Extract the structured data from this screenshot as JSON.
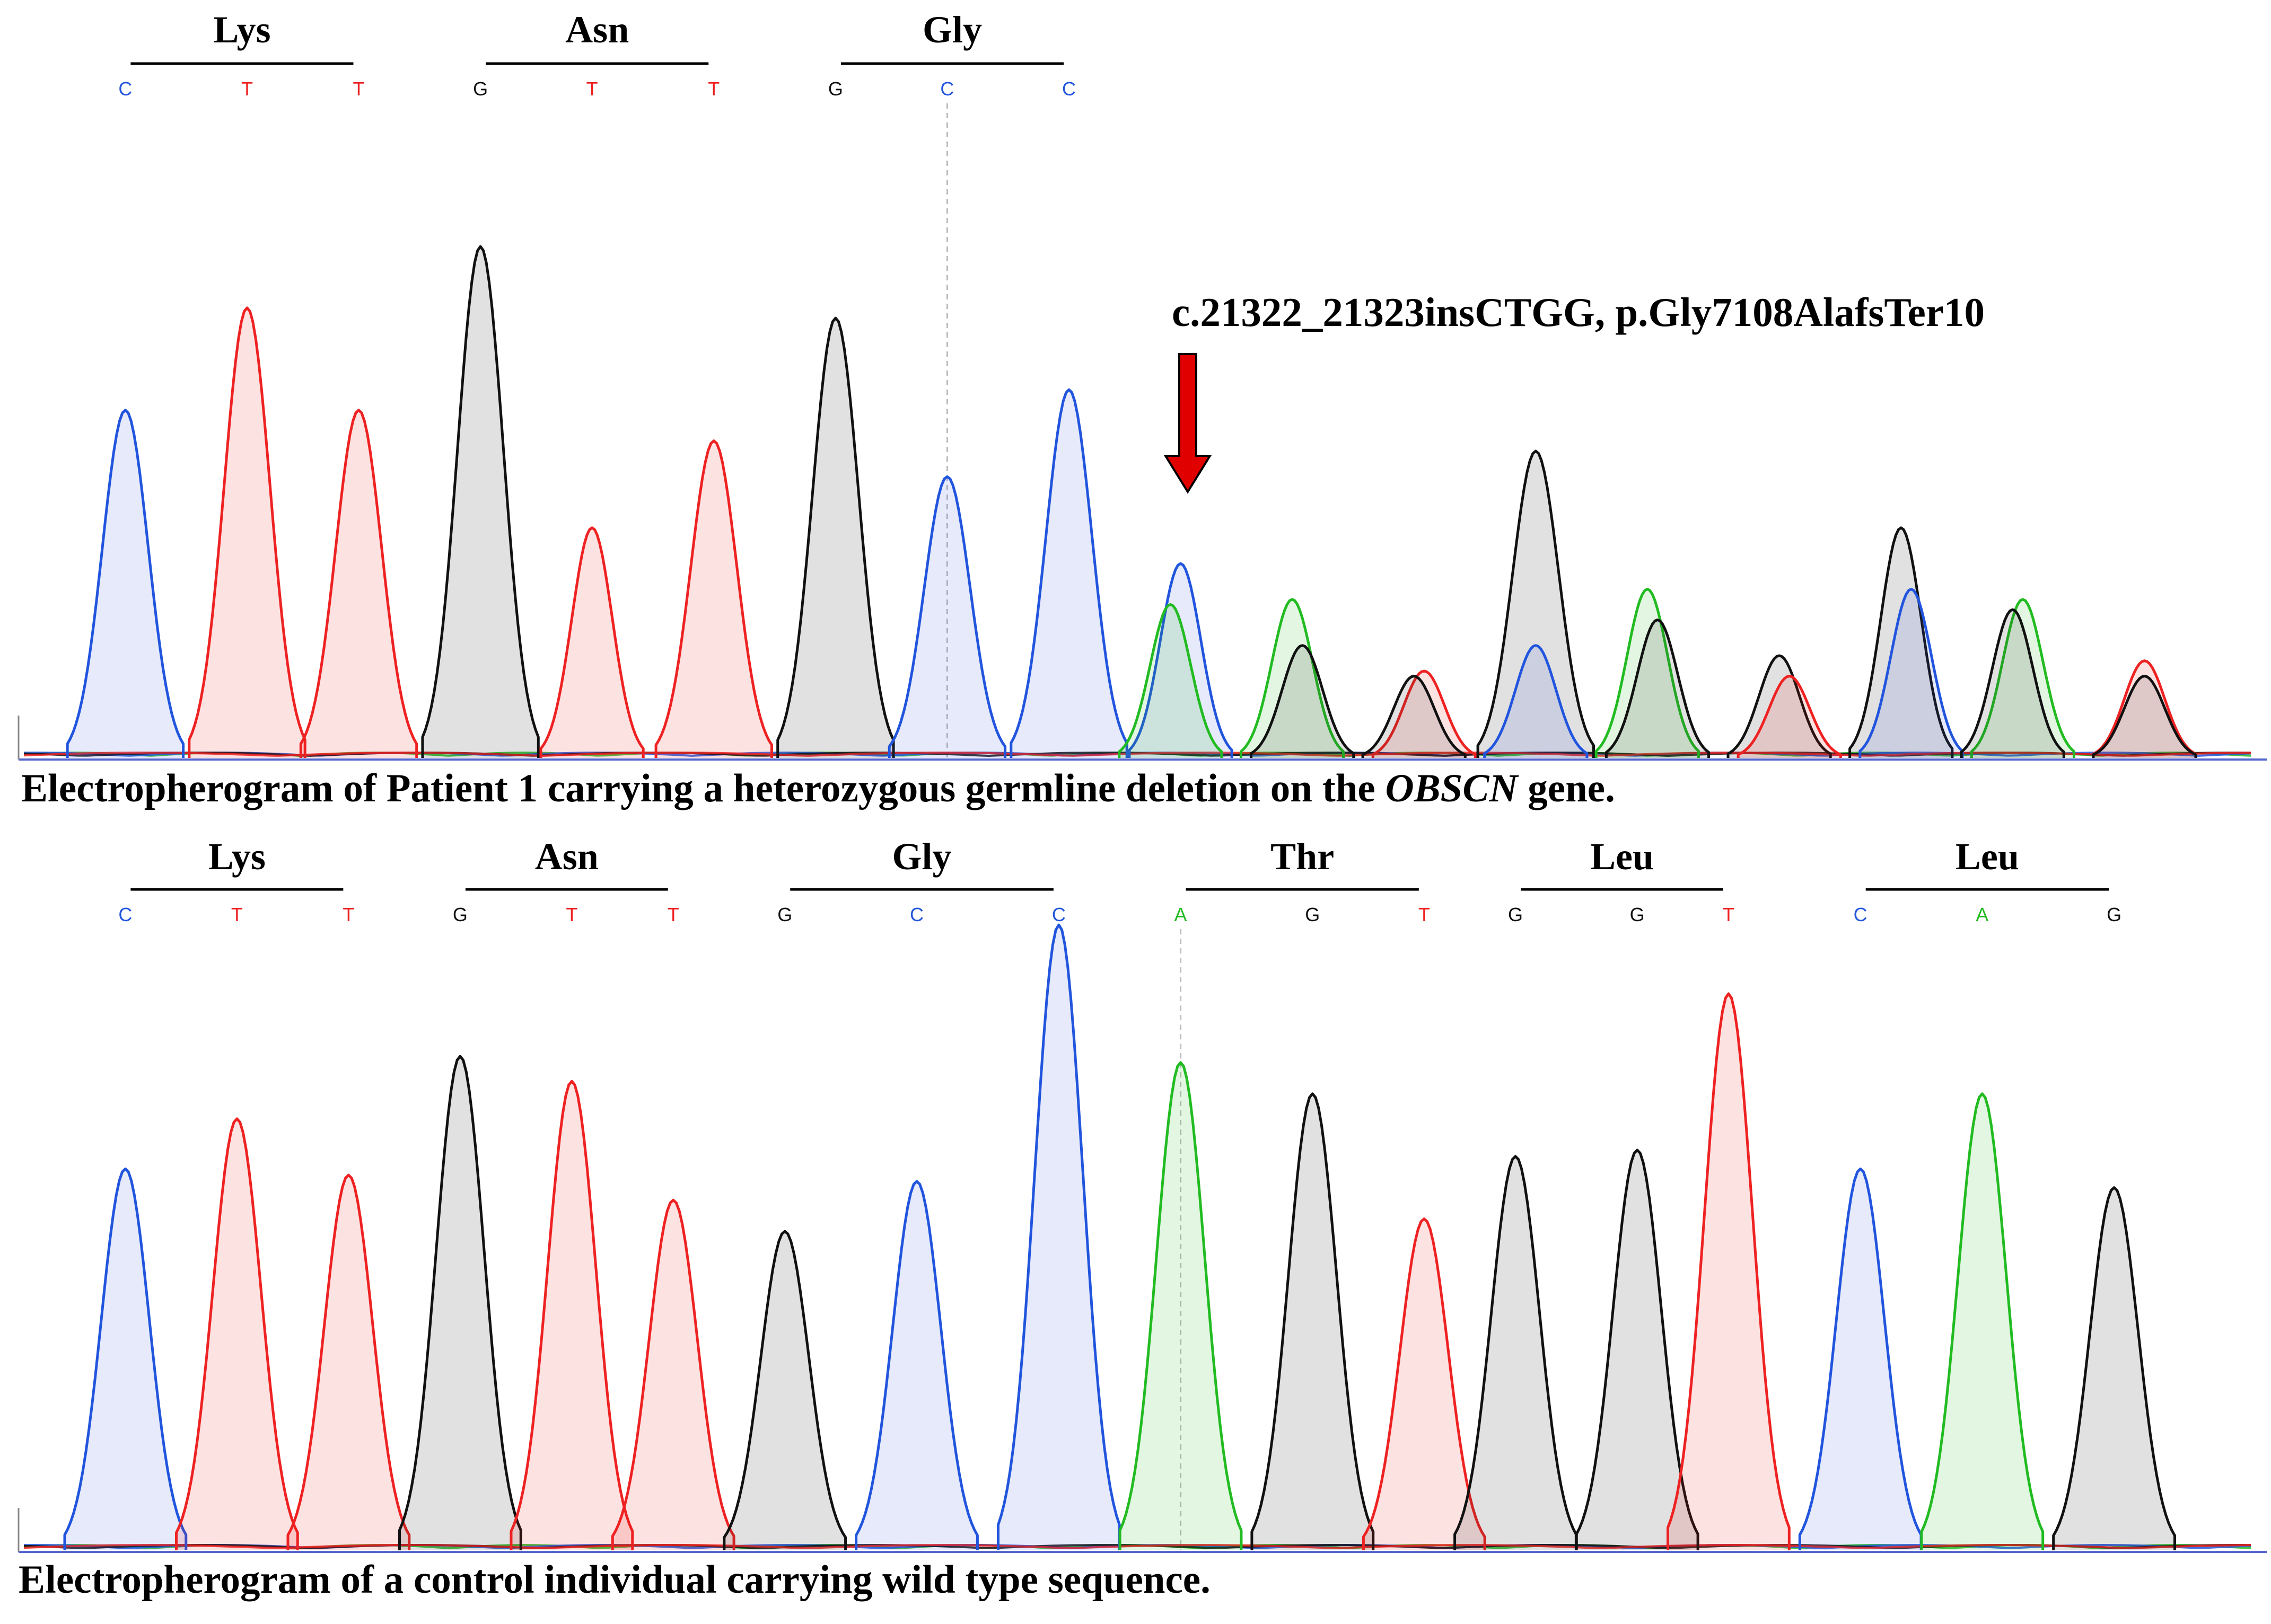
{
  "colors": {
    "A": "#22bb22",
    "C": "#2255dd",
    "G": "#111111",
    "T": "#ee2222",
    "arrow": "#e00000"
  },
  "panels": [
    {
      "id": "top",
      "codons": [
        {
          "aa": "Lys",
          "bases": [
            "C",
            "T",
            "T"
          ]
        },
        {
          "aa": "Asn",
          "bases": [
            "G",
            "T",
            "T"
          ]
        },
        {
          "aa": "Gly",
          "bases": [
            "G",
            "C",
            "C"
          ]
        }
      ],
      "annotation": "c.21322_21323insCTGG, p.Gly7108AlafsTer10",
      "caption_before": "Electropherogram of Patient 1 carrying a heterozygous germline deletion on the ",
      "caption_gene": "OBSCN",
      "caption_after": " gene.",
      "chart_data": {
        "type": "line",
        "title": "Electropherogram of Patient 1 carrying a heterozygous germline deletion on the OBSCN gene.",
        "x_range": [
          0,
          22
        ],
        "y_range": [
          0,
          100
        ],
        "peaks": [
          {
            "base": "C",
            "x": 1.0,
            "h": 68
          },
          {
            "base": "T",
            "x": 2.2,
            "h": 88
          },
          {
            "base": "T",
            "x": 3.3,
            "h": 68
          },
          {
            "base": "G",
            "x": 4.5,
            "h": 100
          },
          {
            "base": "T",
            "x": 5.6,
            "h": 45
          },
          {
            "base": "T",
            "x": 6.8,
            "h": 62
          },
          {
            "base": "G",
            "x": 8.0,
            "h": 86
          },
          {
            "base": "C",
            "x": 9.1,
            "h": 55
          },
          {
            "base": "C",
            "x": 10.3,
            "h": 72
          },
          {
            "base": "C",
            "x": 11.4,
            "h": 38
          },
          {
            "base": "A",
            "x": 11.3,
            "h": 30
          },
          {
            "base": "A",
            "x": 12.5,
            "h": 31
          },
          {
            "base": "G",
            "x": 12.6,
            "h": 22
          },
          {
            "base": "T",
            "x": 13.8,
            "h": 17
          },
          {
            "base": "G",
            "x": 13.7,
            "h": 16
          },
          {
            "base": "G",
            "x": 14.9,
            "h": 60
          },
          {
            "base": "C",
            "x": 14.9,
            "h": 22
          },
          {
            "base": "A",
            "x": 16.0,
            "h": 33
          },
          {
            "base": "G",
            "x": 16.1,
            "h": 27
          },
          {
            "base": "G",
            "x": 17.3,
            "h": 20
          },
          {
            "base": "T",
            "x": 17.4,
            "h": 16
          },
          {
            "base": "G",
            "x": 18.5,
            "h": 45
          },
          {
            "base": "C",
            "x": 18.6,
            "h": 33
          },
          {
            "base": "A",
            "x": 19.7,
            "h": 31
          },
          {
            "base": "G",
            "x": 19.6,
            "h": 29
          },
          {
            "base": "T",
            "x": 20.9,
            "h": 19
          },
          {
            "base": "G",
            "x": 20.9,
            "h": 16
          }
        ],
        "marker_x": 9.1
      }
    },
    {
      "id": "bottom",
      "codons": [
        {
          "aa": "Lys",
          "bases": [
            "C",
            "T",
            "T"
          ]
        },
        {
          "aa": "Asn",
          "bases": [
            "G",
            "T",
            "T"
          ]
        },
        {
          "aa": "Gly",
          "bases": [
            "G",
            "C",
            "C"
          ]
        },
        {
          "aa": "Thr",
          "bases": [
            "A",
            "G",
            "T"
          ]
        },
        {
          "aa": "Leu",
          "bases": [
            "G",
            "G",
            "T"
          ]
        },
        {
          "aa": "Leu",
          "bases": [
            "C",
            "A",
            "G"
          ]
        }
      ],
      "caption": "Electropherogram of a control individual carrying wild type sequence.",
      "chart_data": {
        "type": "line",
        "title": "Electropherogram of a control individual carrying wild type sequence.",
        "x_range": [
          0,
          22
        ],
        "y_range": [
          0,
          100
        ],
        "peaks": [
          {
            "base": "C",
            "x": 1.0,
            "h": 61
          },
          {
            "base": "T",
            "x": 2.1,
            "h": 69
          },
          {
            "base": "T",
            "x": 3.2,
            "h": 60
          },
          {
            "base": "G",
            "x": 4.3,
            "h": 79
          },
          {
            "base": "T",
            "x": 5.4,
            "h": 75
          },
          {
            "base": "T",
            "x": 6.4,
            "h": 56
          },
          {
            "base": "G",
            "x": 7.5,
            "h": 51
          },
          {
            "base": "C",
            "x": 8.8,
            "h": 59
          },
          {
            "base": "C",
            "x": 10.2,
            "h": 100
          },
          {
            "base": "A",
            "x": 11.4,
            "h": 78
          },
          {
            "base": "G",
            "x": 12.7,
            "h": 73
          },
          {
            "base": "T",
            "x": 13.8,
            "h": 53
          },
          {
            "base": "G",
            "x": 14.7,
            "h": 63
          },
          {
            "base": "G",
            "x": 15.9,
            "h": 64
          },
          {
            "base": "T",
            "x": 16.8,
            "h": 89
          },
          {
            "base": "C",
            "x": 18.1,
            "h": 61
          },
          {
            "base": "A",
            "x": 19.3,
            "h": 73
          },
          {
            "base": "G",
            "x": 20.6,
            "h": 58
          }
        ],
        "marker_x": 11.4
      }
    }
  ]
}
